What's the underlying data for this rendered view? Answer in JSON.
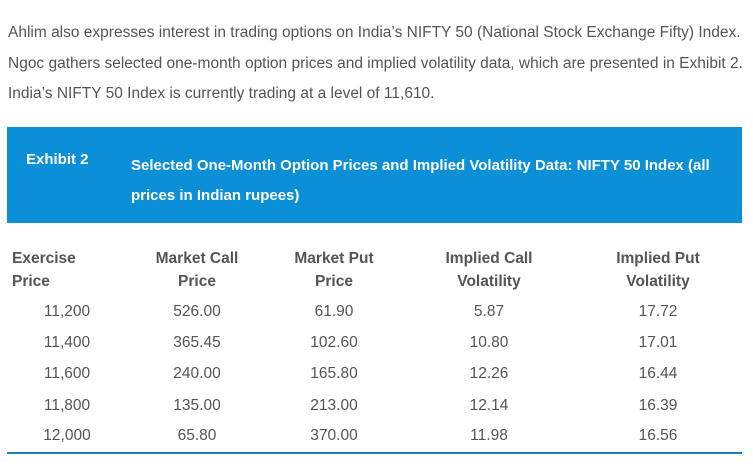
{
  "intro": "Ahlim also expresses interest in trading options on India’s NIFTY 50 (National Stock Exchange Fifty) Index. Ngoc gathers selected one-month option prices and implied volatility data, which are presented in Exhibit 2. India’s NIFTY 50 Index is currently trading at a level of 11,610.",
  "exhibit": {
    "label": "Exhibit 2",
    "title": "Selected One-Month Option Prices and Implied Volatility Data: NIFTY 50 Index (all prices in Indian rupees)"
  },
  "table": {
    "headers": [
      [
        "Exercise",
        "Price"
      ],
      [
        "Market Call",
        "Price"
      ],
      [
        "Market Put",
        "Price"
      ],
      [
        "Implied Call",
        "Volatility"
      ],
      [
        "Implied Put",
        "Volatility"
      ]
    ],
    "rows": [
      [
        "11,200",
        "526.00",
        "61.90",
        "5.87",
        "17.72"
      ],
      [
        "11,400",
        "365.45",
        "102.60",
        "10.80",
        "17.01"
      ],
      [
        "11,600",
        "240.00",
        "165.80",
        "12.26",
        "16.44"
      ],
      [
        "11,800",
        "135.00",
        "213.00",
        "12.14",
        "16.39"
      ],
      [
        "12,000",
        "65.80",
        "370.00",
        "11.98",
        "16.56"
      ]
    ]
  }
}
